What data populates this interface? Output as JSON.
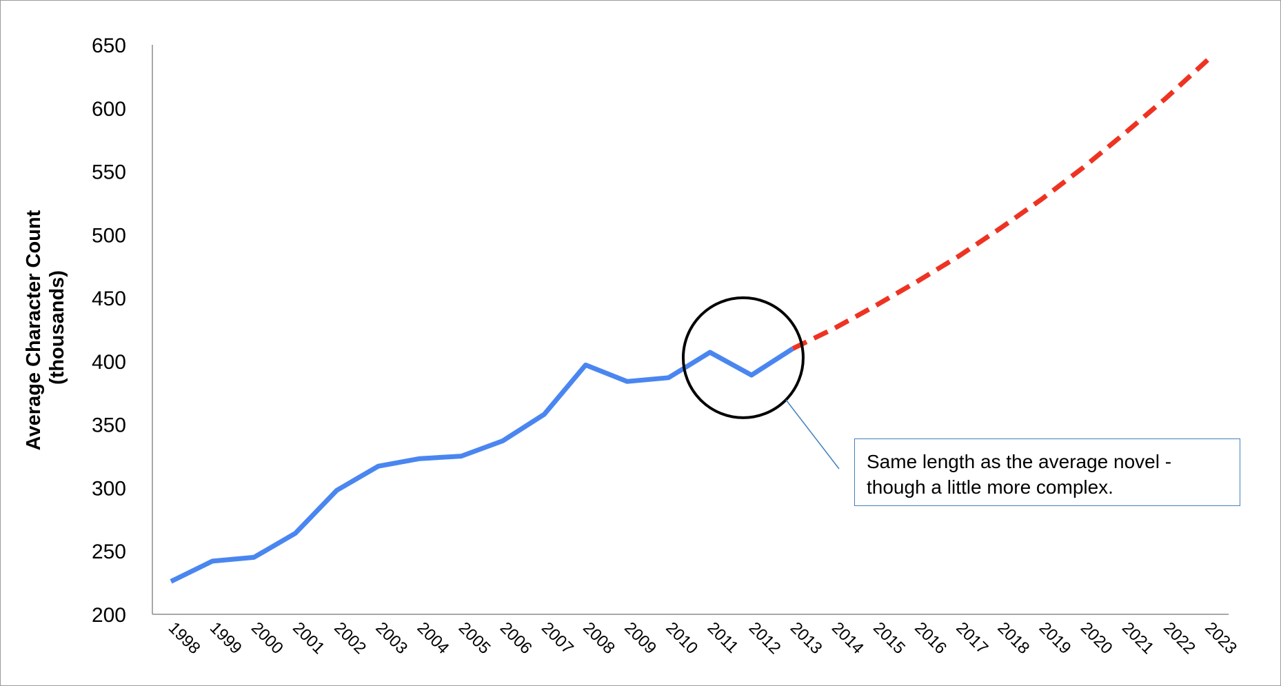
{
  "chart_data": {
    "type": "line",
    "title": "",
    "xlabel": "",
    "ylabel": [
      "Average Character Count",
      "(thousands)"
    ],
    "ylim": [
      200,
      650
    ],
    "yticks": [
      200,
      250,
      300,
      350,
      400,
      450,
      500,
      550,
      600,
      650
    ],
    "categories": [
      "1998",
      "1999",
      "2000",
      "2001",
      "2002",
      "2003",
      "2004",
      "2005",
      "2006",
      "2007",
      "2008",
      "2009",
      "2010",
      "2011",
      "2012",
      "2013",
      "2014",
      "2015",
      "2016",
      "2017",
      "2018",
      "2019",
      "2020",
      "2021",
      "2022",
      "2023"
    ],
    "grid": false,
    "legend": "none",
    "series": [
      {
        "style": "solid",
        "color": "#4a86f0",
        "x": [
          "1998",
          "1999",
          "2000",
          "2001",
          "2002",
          "2003",
          "2004",
          "2005",
          "2006",
          "2007",
          "2008",
          "2009",
          "2010",
          "2011",
          "2012",
          "2013"
        ],
        "values": [
          226,
          242,
          245,
          264,
          298,
          317,
          323,
          325,
          337,
          358,
          397,
          384,
          387,
          407,
          389,
          410
        ]
      },
      {
        "style": "dashed",
        "color": "#ee3322",
        "x": [
          "2013",
          "2014",
          "2015",
          "2016",
          "2017",
          "2018",
          "2019",
          "2020",
          "2021",
          "2022",
          "2023"
        ],
        "values": [
          410,
          426,
          444,
          463,
          483,
          505,
          528,
          553,
          580,
          608,
          638
        ]
      }
    ],
    "annotations": [
      {
        "type": "circle",
        "around": [
          "2011",
          "2012"
        ],
        "center": {
          "x": "2012",
          "y": 400
        }
      },
      {
        "type": "callout",
        "lines": [
          "Same length as the average novel -",
          "though a little more complex."
        ]
      }
    ]
  }
}
